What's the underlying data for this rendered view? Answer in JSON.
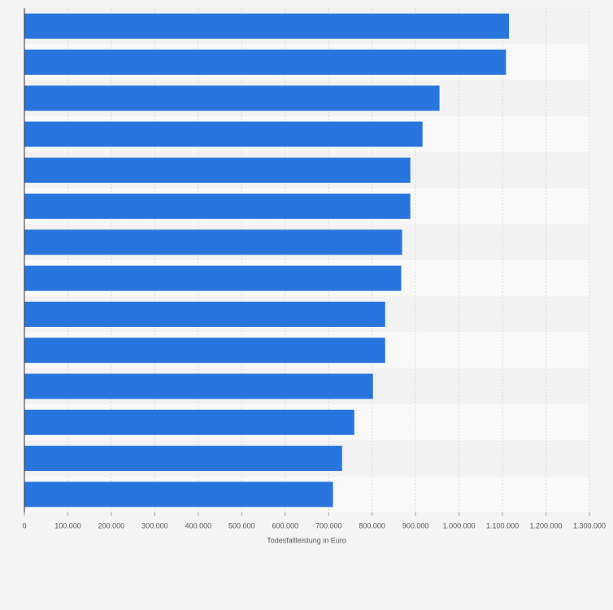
{
  "chart_data": {
    "type": "bar",
    "orientation": "horizontal",
    "x_label": "Todesfallleistung in Euro",
    "categories": [
      null,
      null,
      null,
      null,
      null,
      null,
      null,
      null,
      null,
      null,
      null,
      null,
      null,
      null
    ],
    "values": [
      1115000,
      1108000,
      955000,
      916000,
      888000,
      888000,
      869000,
      867000,
      830000,
      830000,
      802000,
      759000,
      731000,
      710000
    ],
    "color": "#2876dd",
    "xlim": [
      0,
      1300000
    ],
    "xticks": [
      0,
      {
        "value": 100000,
        "label": "100.000"
      },
      {
        "value": 200000,
        "label": "200.000"
      },
      {
        "value": 300000,
        "label": "300.000"
      },
      {
        "value": 400000,
        "label": "400.000"
      },
      {
        "value": 500000,
        "label": "500.000"
      },
      {
        "value": 600000,
        "label": "600.000"
      },
      {
        "value": 700000,
        "label": "700.000"
      },
      {
        "value": 800000,
        "label": "800.000"
      },
      {
        "value": 900000,
        "label": "900.000"
      },
      {
        "value": 1000000,
        "label": "1.000.000"
      },
      {
        "value": 1100000,
        "label": "1.100.000"
      },
      {
        "value": 1200000,
        "label": "1.200.000"
      },
      {
        "value": 1300000,
        "label": "1.300.000"
      }
    ],
    "grid": true
  }
}
